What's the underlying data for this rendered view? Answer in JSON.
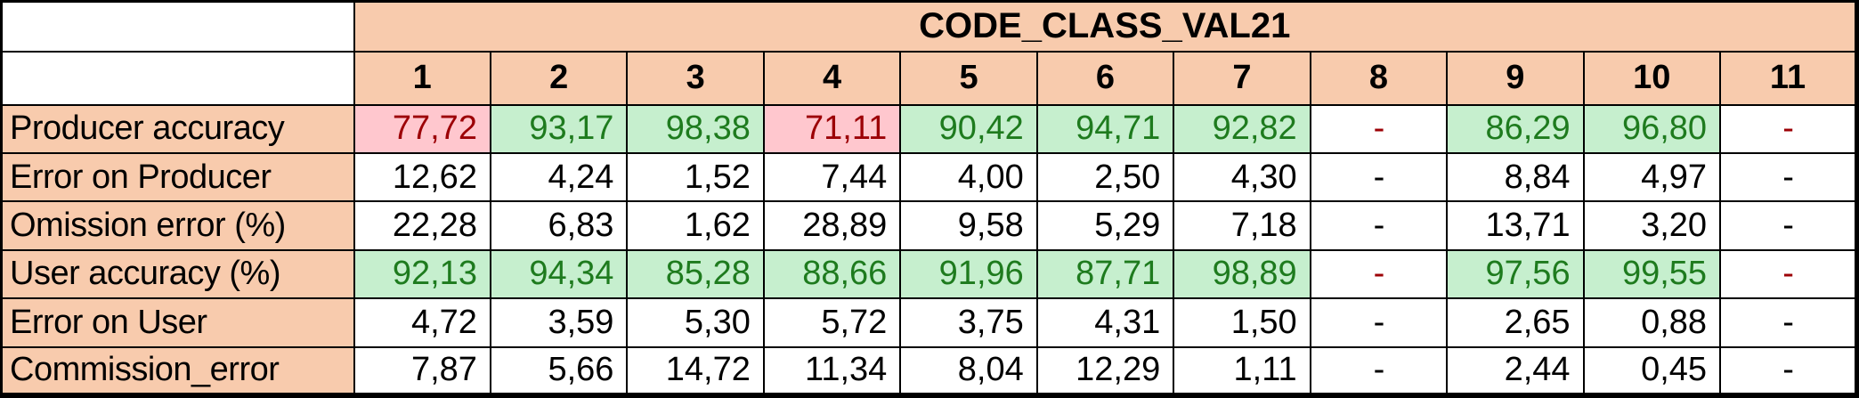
{
  "chart_data": {
    "type": "table",
    "title": "CODE_CLASS_VAL21",
    "columns": [
      "1",
      "2",
      "3",
      "4",
      "5",
      "6",
      "7",
      "8",
      "9",
      "10",
      "11"
    ],
    "rows": [
      {
        "label": "Producer accuracy",
        "values": [
          "77,72",
          "93,17",
          "98,38",
          "71,11",
          "90,42",
          "94,71",
          "92,82",
          "-",
          "86,29",
          "96,80",
          "-"
        ],
        "cell_styles": [
          "bad",
          "good",
          "good",
          "bad",
          "good",
          "good",
          "good",
          "dash-red",
          "good",
          "good",
          "dash-red"
        ]
      },
      {
        "label": "Error on Producer",
        "values": [
          "12,62",
          "4,24",
          "1,52",
          "7,44",
          "4,00",
          "2,50",
          "4,30",
          "-",
          "8,84",
          "4,97",
          "-"
        ],
        "cell_styles": [
          "plain",
          "plain",
          "plain",
          "plain",
          "plain",
          "plain",
          "plain",
          "dash",
          "plain",
          "plain",
          "dash"
        ]
      },
      {
        "label": "Omission error (%)",
        "values": [
          "22,28",
          "6,83",
          "1,62",
          "28,89",
          "9,58",
          "5,29",
          "7,18",
          "-",
          "13,71",
          "3,20",
          "-"
        ],
        "cell_styles": [
          "plain",
          "plain",
          "plain",
          "plain",
          "plain",
          "plain",
          "plain",
          "dash",
          "plain",
          "plain",
          "dash"
        ]
      },
      {
        "label": "User accuracy (%)",
        "values": [
          "92,13",
          "94,34",
          "85,28",
          "88,66",
          "91,96",
          "87,71",
          "98,89",
          "-",
          "97,56",
          "99,55",
          "-"
        ],
        "cell_styles": [
          "good",
          "good",
          "good",
          "good",
          "good",
          "good",
          "good",
          "dash-red",
          "good",
          "good",
          "dash-red"
        ]
      },
      {
        "label": "Error on User",
        "values": [
          "4,72",
          "3,59",
          "5,30",
          "5,72",
          "3,75",
          "4,31",
          "1,50",
          "-",
          "2,65",
          "0,88",
          "-"
        ],
        "cell_styles": [
          "plain",
          "plain",
          "plain",
          "plain",
          "plain",
          "plain",
          "plain",
          "dash",
          "plain",
          "plain",
          "dash"
        ]
      },
      {
        "label": "Commission_error",
        "values": [
          "7,87",
          "5,66",
          "14,72",
          "11,34",
          "8,04",
          "12,29",
          "1,11",
          "-",
          "2,44",
          "0,45",
          "-"
        ],
        "cell_styles": [
          "plain",
          "plain",
          "plain",
          "plain",
          "plain",
          "plain",
          "plain",
          "dash",
          "plain",
          "plain",
          "dash"
        ]
      }
    ]
  },
  "colors": {
    "header_fill": "#F8CBAD",
    "good_fill": "#C6EFCE",
    "good_text": "#1E7B1E",
    "bad_fill": "#FFC7CE",
    "bad_text": "#9C0006",
    "text": "#000000",
    "border": "#000000",
    "background": "#FFFFFF"
  }
}
